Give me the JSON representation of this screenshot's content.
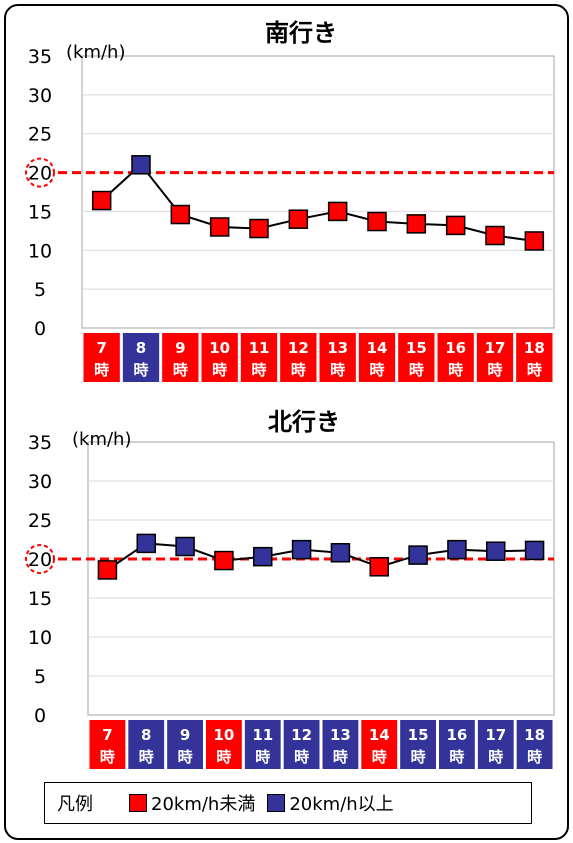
{
  "chart_data": [
    {
      "type": "line",
      "title": "南行き",
      "unit": "(km/h)",
      "categories": [
        {
          "num": "7",
          "suffix": "時"
        },
        {
          "num": "8",
          "suffix": "時"
        },
        {
          "num": "9",
          "suffix": "時"
        },
        {
          "num": "10",
          "suffix": "時"
        },
        {
          "num": "11",
          "suffix": "時"
        },
        {
          "num": "12",
          "suffix": "時"
        },
        {
          "num": "13",
          "suffix": "時"
        },
        {
          "num": "14",
          "suffix": "時"
        },
        {
          "num": "15",
          "suffix": "時"
        },
        {
          "num": "16",
          "suffix": "時"
        },
        {
          "num": "17",
          "suffix": "時"
        },
        {
          "num": "18",
          "suffix": "時"
        }
      ],
      "values": [
        16.4,
        21.0,
        14.6,
        13.0,
        12.8,
        14.0,
        15.0,
        13.7,
        13.4,
        13.2,
        11.9,
        11.2
      ],
      "ylim": [
        0,
        35
      ],
      "yticks": [
        "0",
        "5",
        "10",
        "15",
        "20",
        "25",
        "30",
        "35"
      ],
      "threshold": 20,
      "grid": true
    },
    {
      "type": "line",
      "title": "北行き",
      "unit": "(km/h)",
      "categories": [
        {
          "num": "7",
          "suffix": "時"
        },
        {
          "num": "8",
          "suffix": "時"
        },
        {
          "num": "9",
          "suffix": "時"
        },
        {
          "num": "10",
          "suffix": "時"
        },
        {
          "num": "11",
          "suffix": "時"
        },
        {
          "num": "12",
          "suffix": "時"
        },
        {
          "num": "13",
          "suffix": "時"
        },
        {
          "num": "14",
          "suffix": "時"
        },
        {
          "num": "15",
          "suffix": "時"
        },
        {
          "num": "16",
          "suffix": "時"
        },
        {
          "num": "17",
          "suffix": "時"
        },
        {
          "num": "18",
          "suffix": "時"
        }
      ],
      "values": [
        18.6,
        22.0,
        21.6,
        19.8,
        20.3,
        21.2,
        20.8,
        19.0,
        20.5,
        21.2,
        21.0,
        21.1
      ],
      "ylim": [
        0,
        35
      ],
      "yticks": [
        "0",
        "5",
        "10",
        "15",
        "20",
        "25",
        "30",
        "35"
      ],
      "threshold": 20,
      "grid": true
    }
  ],
  "colors": {
    "below": "#ff0000",
    "above": "#333399",
    "threshold": "#ff0000",
    "line": "#000000",
    "grid": "#d9d9d9"
  },
  "legend": {
    "title": "凡例",
    "below_label": "20km/h未満",
    "above_label": "20km/h以上"
  }
}
